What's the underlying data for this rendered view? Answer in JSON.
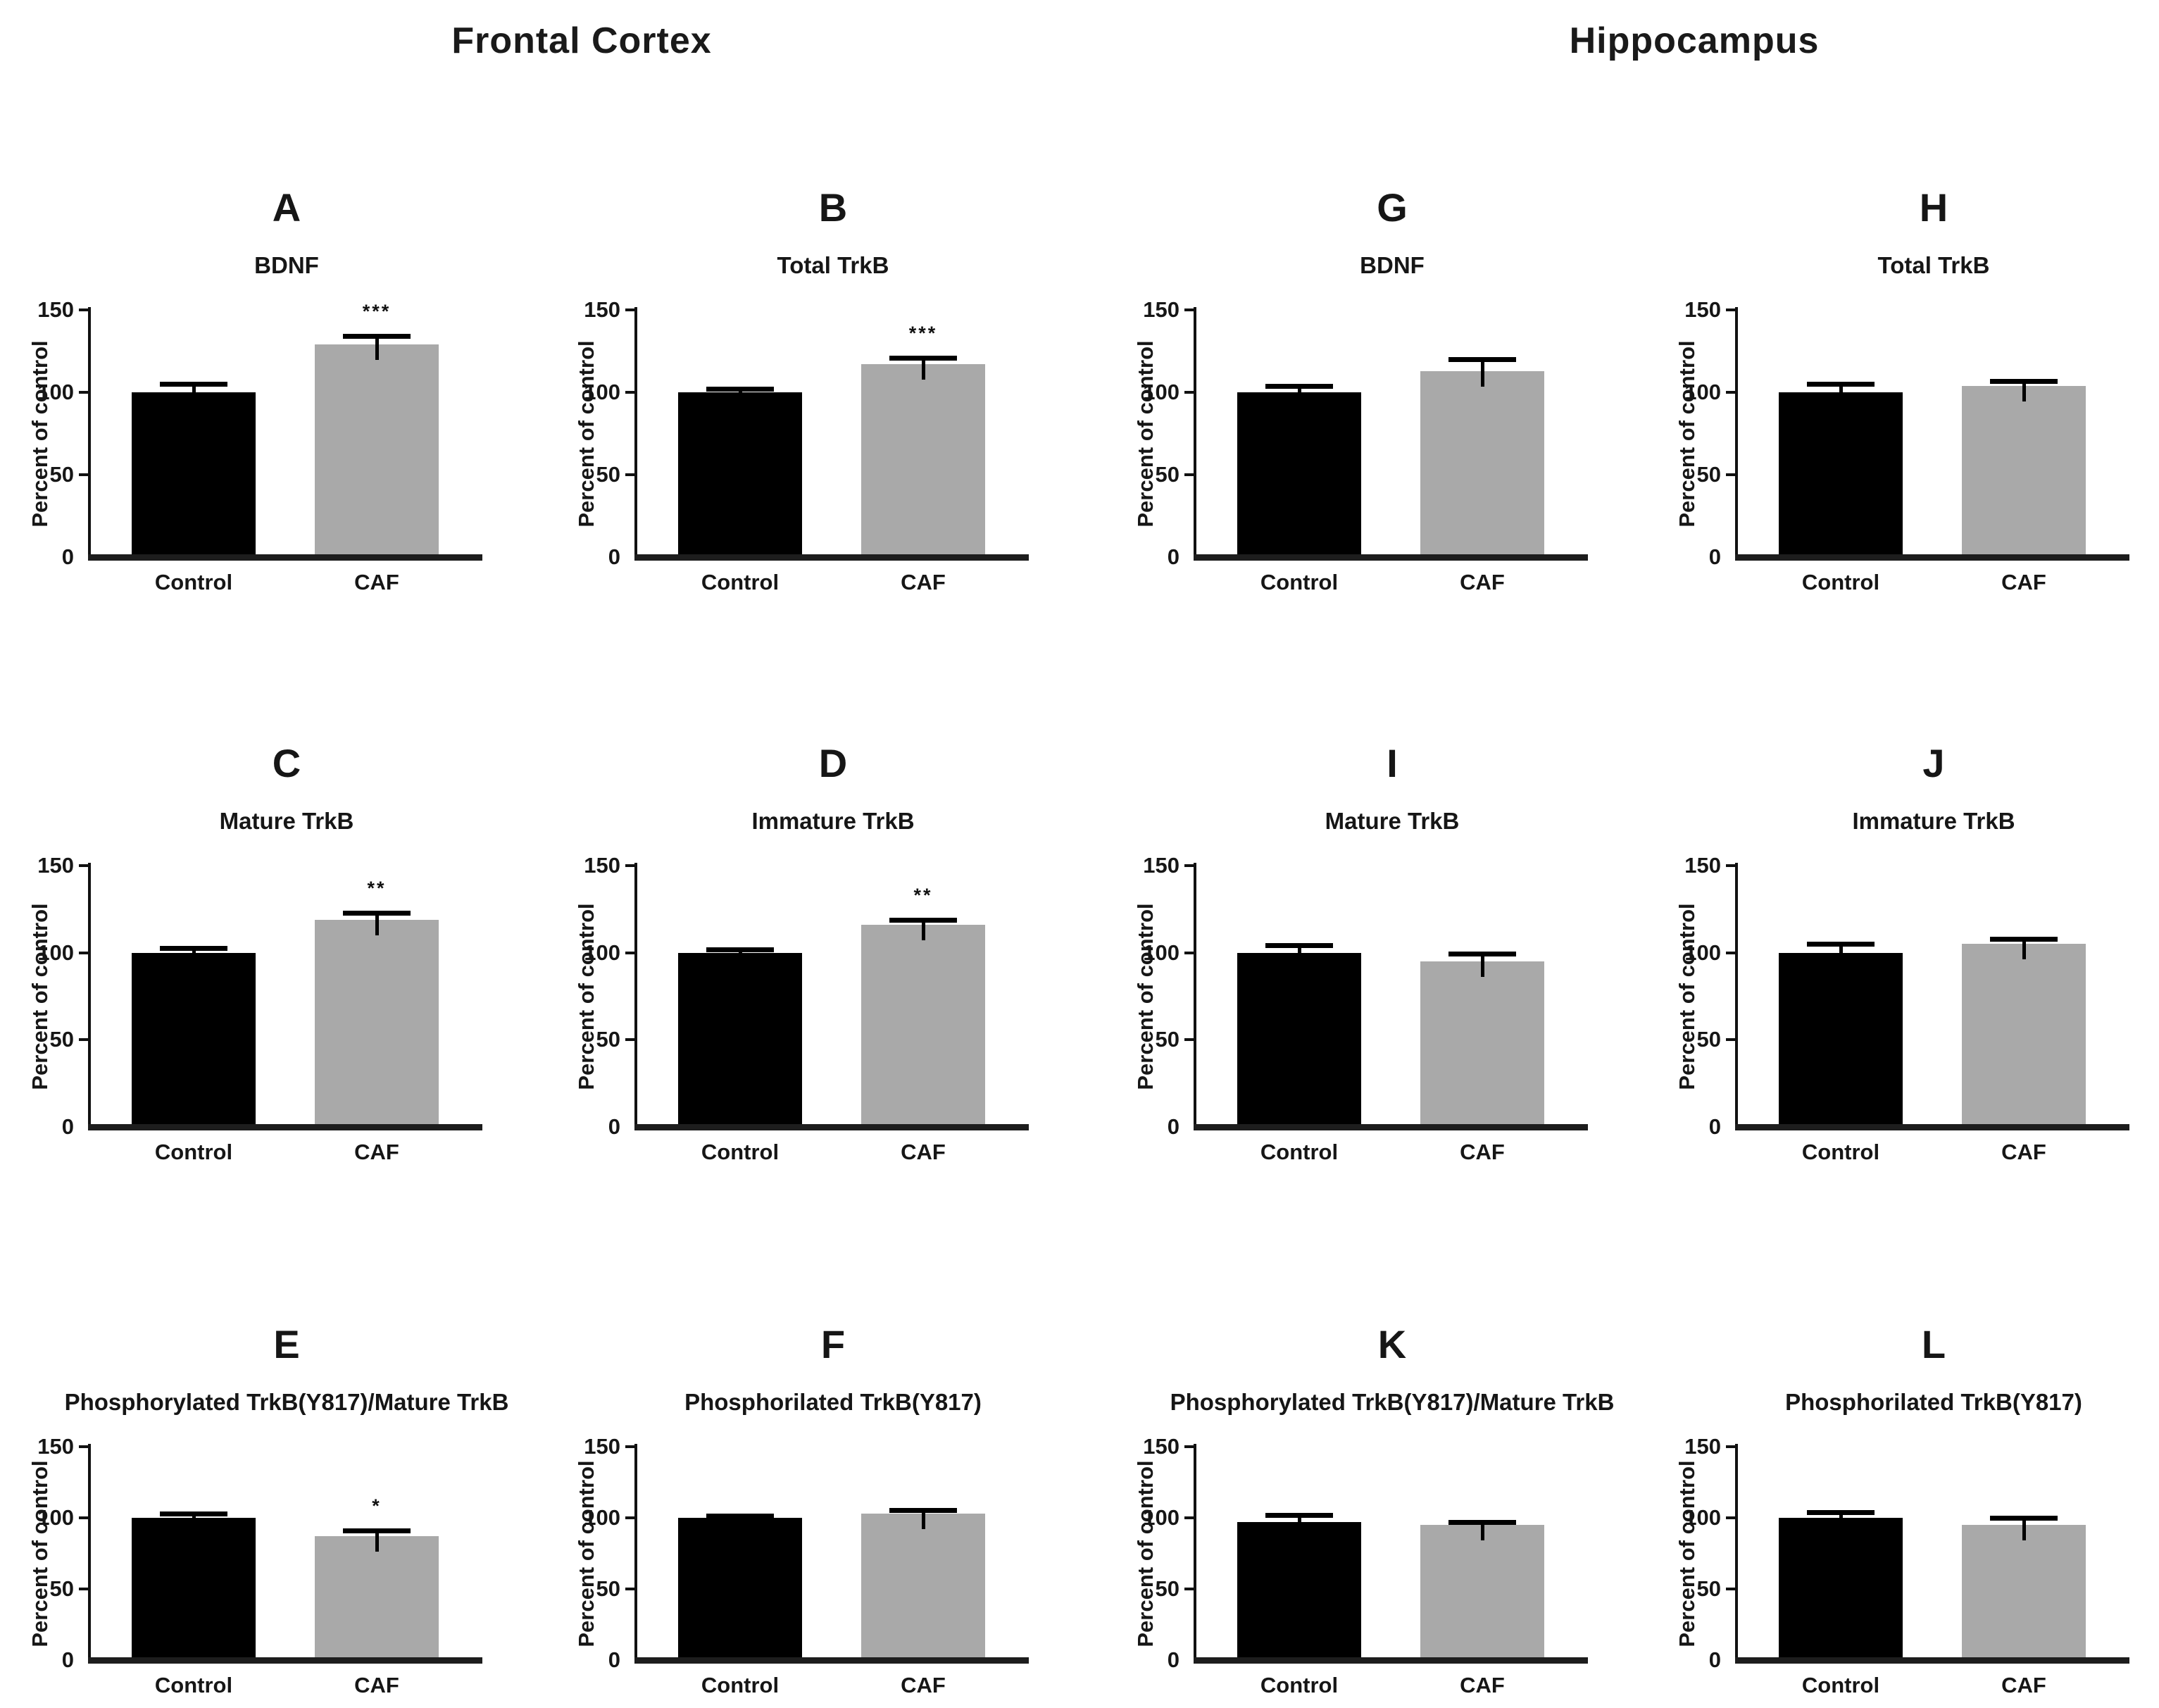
{
  "figure": {
    "section_headers": [
      {
        "label": "Frontal Cortex"
      },
      {
        "label": "Hippocampus"
      }
    ],
    "y_axis": {
      "label": "Percent of control",
      "ticks": [
        0,
        50,
        100,
        150
      ],
      "min": 0,
      "max": 150
    },
    "x_categories": [
      "Control",
      "CAF"
    ],
    "bar_colors": {
      "control": "#000000",
      "caf": "#a9a9a9"
    }
  },
  "chart_data": [
    {
      "type": "bar",
      "letter": "A",
      "region": "Frontal Cortex",
      "title": "BDNF",
      "categories": [
        "Control",
        "CAF"
      ],
      "ylabel": "Percent of control",
      "ylim": [
        0,
        150
      ],
      "series": [
        {
          "name": "Control",
          "value": 100,
          "error_top": 105
        },
        {
          "name": "CAF",
          "value": 129,
          "error_top": 134
        }
      ],
      "significance": "***"
    },
    {
      "type": "bar",
      "letter": "B",
      "region": "Frontal Cortex",
      "title": "Total TrkB",
      "categories": [
        "Control",
        "CAF"
      ],
      "ylabel": "Percent of control",
      "ylim": [
        0,
        150
      ],
      "series": [
        {
          "name": "Control",
          "value": 100,
          "error_top": 102
        },
        {
          "name": "CAF",
          "value": 117,
          "error_top": 121
        }
      ],
      "significance": "***"
    },
    {
      "type": "bar",
      "letter": "G",
      "region": "Hippocampus",
      "title": "BDNF",
      "categories": [
        "Control",
        "CAF"
      ],
      "ylabel": "Percent of control",
      "ylim": [
        0,
        150
      ],
      "series": [
        {
          "name": "Control",
          "value": 100,
          "error_top": 104
        },
        {
          "name": "CAF",
          "value": 113,
          "error_top": 120
        }
      ],
      "significance": ""
    },
    {
      "type": "bar",
      "letter": "H",
      "region": "Hippocampus",
      "title": "Total TrkB",
      "categories": [
        "Control",
        "CAF"
      ],
      "ylabel": "Percent of control",
      "ylim": [
        0,
        150
      ],
      "series": [
        {
          "name": "Control",
          "value": 100,
          "error_top": 105
        },
        {
          "name": "CAF",
          "value": 104,
          "error_top": 107
        }
      ],
      "significance": ""
    },
    {
      "type": "bar",
      "letter": "C",
      "region": "Frontal Cortex",
      "title": "Mature TrkB",
      "categories": [
        "Control",
        "CAF"
      ],
      "ylabel": "Percent of control",
      "ylim": [
        0,
        150
      ],
      "series": [
        {
          "name": "Control",
          "value": 100,
          "error_top": 102.5
        },
        {
          "name": "CAF",
          "value": 119,
          "error_top": 123
        }
      ],
      "significance": "**"
    },
    {
      "type": "bar",
      "letter": "D",
      "region": "Frontal Cortex",
      "title": "Immature TrkB",
      "categories": [
        "Control",
        "CAF"
      ],
      "ylabel": "Percent of control",
      "ylim": [
        0,
        150
      ],
      "series": [
        {
          "name": "Control",
          "value": 100,
          "error_top": 102
        },
        {
          "name": "CAF",
          "value": 116,
          "error_top": 119
        }
      ],
      "significance": "**"
    },
    {
      "type": "bar",
      "letter": "I",
      "region": "Hippocampus",
      "title": "Mature TrkB",
      "categories": [
        "Control",
        "CAF"
      ],
      "ylabel": "Percent of control",
      "ylim": [
        0,
        150
      ],
      "series": [
        {
          "name": "Control",
          "value": 100,
          "error_top": 104.5
        },
        {
          "name": "CAF",
          "value": 95,
          "error_top": 99.5
        }
      ],
      "significance": ""
    },
    {
      "type": "bar",
      "letter": "J",
      "region": "Hippocampus",
      "title": "Immature TrkB",
      "categories": [
        "Control",
        "CAF"
      ],
      "ylabel": "Percent of control",
      "ylim": [
        0,
        150
      ],
      "series": [
        {
          "name": "Control",
          "value": 100,
          "error_top": 105
        },
        {
          "name": "CAF",
          "value": 105,
          "error_top": 108
        }
      ],
      "significance": ""
    },
    {
      "type": "bar",
      "letter": "E",
      "region": "Frontal Cortex",
      "title": "Phosphorylated TrkB(Y817)/Mature TrkB",
      "categories": [
        "Control",
        "CAF"
      ],
      "ylabel": "Percent of control",
      "ylim": [
        0,
        150
      ],
      "series": [
        {
          "name": "Control",
          "value": 100,
          "error_top": 103
        },
        {
          "name": "CAF",
          "value": 87,
          "error_top": 91
        }
      ],
      "significance": "*"
    },
    {
      "type": "bar",
      "letter": "F",
      "region": "Frontal Cortex",
      "title": "Phosphorilated TrkB(Y817)",
      "categories": [
        "Control",
        "CAF"
      ],
      "ylabel": "Percent of control",
      "ylim": [
        0,
        150
      ],
      "series": [
        {
          "name": "Control",
          "value": 100,
          "error_top": 101.5
        },
        {
          "name": "CAF",
          "value": 103,
          "error_top": 105.5
        }
      ],
      "significance": ""
    },
    {
      "type": "bar",
      "letter": "K",
      "region": "Hippocampus",
      "title": "Phosphorylated TrkB(Y817)/Mature TrkB",
      "categories": [
        "Control",
        "CAF"
      ],
      "ylabel": "Percent of control",
      "ylim": [
        0,
        150
      ],
      "series": [
        {
          "name": "Control",
          "value": 97,
          "error_top": 102
        },
        {
          "name": "CAF",
          "value": 95,
          "error_top": 97
        }
      ],
      "significance": ""
    },
    {
      "type": "bar",
      "letter": "L",
      "region": "Hippocampus",
      "title": "Phosphorilated TrkB(Y817)",
      "categories": [
        "Control",
        "CAF"
      ],
      "ylabel": "Percent of control",
      "ylim": [
        0,
        150
      ],
      "series": [
        {
          "name": "Control",
          "value": 100,
          "error_top": 104
        },
        {
          "name": "CAF",
          "value": 95,
          "error_top": 100
        }
      ],
      "significance": ""
    }
  ]
}
